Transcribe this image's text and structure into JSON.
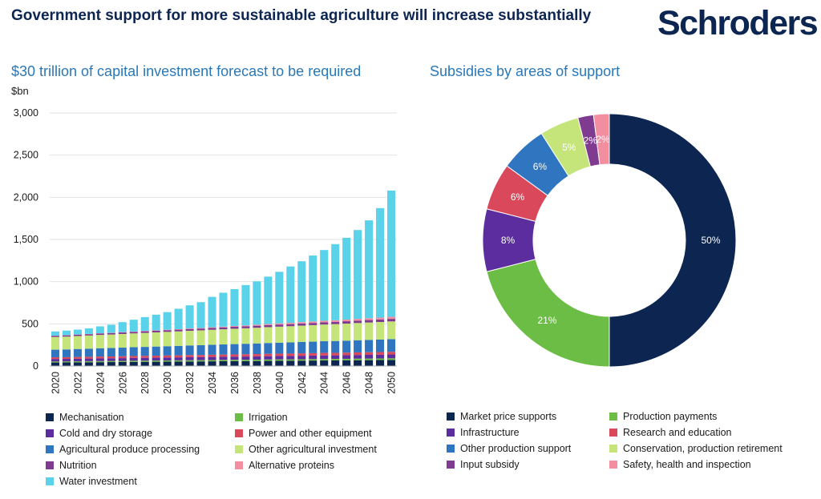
{
  "header": {
    "title": "Government support for more sustainable agriculture will increase substantially",
    "logo": "Schroders"
  },
  "chart_data": [
    {
      "type": "bar",
      "stacked": true,
      "title": "$30 trillion of capital investment forecast to be required",
      "ylabel": "$bn",
      "ylim": [
        0,
        3000
      ],
      "yticks": [
        "3,000",
        "2,500",
        "2,000",
        "1,500",
        "1,000",
        "500",
        "0"
      ],
      "x_tick_labels": [
        "2020",
        "2022",
        "2024",
        "2026",
        "2028",
        "2030",
        "2032",
        "2034",
        "2036",
        "2038",
        "2040",
        "2042",
        "2044",
        "2046",
        "2048",
        "2050"
      ],
      "categories": [
        "2020",
        "2021",
        "2022",
        "2023",
        "2024",
        "2025",
        "2026",
        "2027",
        "2028",
        "2029",
        "2030",
        "2031",
        "2032",
        "2033",
        "2034",
        "2035",
        "2036",
        "2037",
        "2038",
        "2039",
        "2040",
        "2041",
        "2042",
        "2043",
        "2044",
        "2045",
        "2046",
        "2047",
        "2048",
        "2049",
        "2050"
      ],
      "series": [
        {
          "name": "Mechanisation",
          "color": "#0c2551",
          "values": [
            42,
            43,
            44,
            45,
            46,
            47,
            48,
            49,
            50,
            51,
            52,
            53,
            54,
            55,
            56,
            57,
            58,
            59,
            60,
            61,
            62,
            63,
            64,
            65,
            66,
            67,
            68,
            69,
            70,
            71,
            72
          ]
        },
        {
          "name": "Irrigation",
          "color": "#6cbd45",
          "values": [
            12,
            12,
            12,
            13,
            13,
            13,
            13,
            14,
            14,
            14,
            14,
            15,
            15,
            15,
            15,
            16,
            16,
            16,
            16,
            17,
            17,
            17,
            17,
            18,
            18,
            18,
            18,
            19,
            19,
            19,
            20
          ]
        },
        {
          "name": "Cold and dry storage",
          "color": "#5b2d9e",
          "values": [
            30,
            30,
            31,
            31,
            32,
            32,
            33,
            33,
            34,
            34,
            35,
            35,
            36,
            36,
            37,
            37,
            38,
            38,
            39,
            39,
            40,
            40,
            41,
            41,
            42,
            42,
            43,
            43,
            44,
            44,
            45
          ]
        },
        {
          "name": "Power and other equipment",
          "color": "#d9495b",
          "values": [
            20,
            20,
            21,
            21,
            22,
            22,
            22,
            23,
            23,
            24,
            24,
            24,
            25,
            25,
            26,
            26,
            26,
            27,
            27,
            28,
            28,
            28,
            29,
            29,
            30,
            30,
            30,
            31,
            31,
            32,
            32
          ]
        },
        {
          "name": "Agricultural produce processing",
          "color": "#2f75c0",
          "values": [
            90,
            92,
            94,
            96,
            98,
            100,
            102,
            104,
            106,
            108,
            110,
            112,
            114,
            116,
            118,
            120,
            122,
            124,
            126,
            128,
            130,
            132,
            134,
            136,
            138,
            140,
            142,
            144,
            146,
            148,
            150
          ]
        },
        {
          "name": "Other agricultural investment",
          "color": "#c5e57a",
          "values": [
            150,
            152,
            154,
            156,
            158,
            160,
            162,
            164,
            166,
            168,
            170,
            172,
            174,
            176,
            178,
            180,
            182,
            184,
            186,
            188,
            190,
            192,
            194,
            196,
            198,
            200,
            202,
            204,
            206,
            208,
            210
          ]
        },
        {
          "name": "Nutrition",
          "color": "#7e3b8f",
          "values": [
            15,
            15,
            16,
            16,
            17,
            17,
            18,
            18,
            19,
            19,
            20,
            20,
            21,
            21,
            22,
            22,
            23,
            23,
            24,
            24,
            25,
            25,
            26,
            26,
            27,
            27,
            28,
            28,
            29,
            29,
            30
          ]
        },
        {
          "name": "Alternative proteins",
          "color": "#f28ea0",
          "values": [
            2,
            2,
            2,
            3,
            3,
            3,
            4,
            4,
            5,
            5,
            6,
            6,
            7,
            7,
            8,
            9,
            10,
            11,
            12,
            13,
            14,
            15,
            16,
            17,
            18,
            19,
            20,
            21,
            22,
            23,
            25
          ]
        },
        {
          "name": "Water investment",
          "color": "#5ad3ea",
          "values": [
            49,
            54,
            58,
            65,
            81,
            96,
            118,
            140,
            163,
            186,
            208,
            242,
            274,
            306,
            360,
            402,
            437,
            478,
            514,
            562,
            611,
            668,
            721,
            782,
            838,
            902,
            969,
            1053,
            1160,
            1298,
            1496
          ]
        }
      ]
    },
    {
      "type": "pie",
      "donut": true,
      "title": "Subsidies by areas of support",
      "slices": [
        {
          "label": "Market price supports",
          "value": 50,
          "display": "50%",
          "color": "#0c2551",
          "text_color": "#ffffff"
        },
        {
          "label": "Production payments",
          "value": 21,
          "display": "21%",
          "color": "#6cbd45",
          "text_color": "#ffffff"
        },
        {
          "label": "Infrastructure",
          "value": 8,
          "display": "8%",
          "color": "#5b2d9e",
          "text_color": "#ffffff"
        },
        {
          "label": "Research and education",
          "value": 6,
          "display": "6%",
          "color": "#d9495b",
          "text_color": "#ffffff"
        },
        {
          "label": "Other production support",
          "value": 6,
          "display": "6%",
          "color": "#2f75c0",
          "text_color": "#ffffff"
        },
        {
          "label": "Conservation, production retirement",
          "value": 5,
          "display": "5%",
          "color": "#c5e57a",
          "text_color": "#ffffff"
        },
        {
          "label": "Input subsidy",
          "value": 2,
          "display": "2%",
          "color": "#7e3b8f",
          "text_color": "#ffffff"
        },
        {
          "label": "Safety, health and inspection",
          "value": 2,
          "display": "2%",
          "color": "#f28ea0",
          "text_color": "#ffffff"
        }
      ]
    }
  ]
}
